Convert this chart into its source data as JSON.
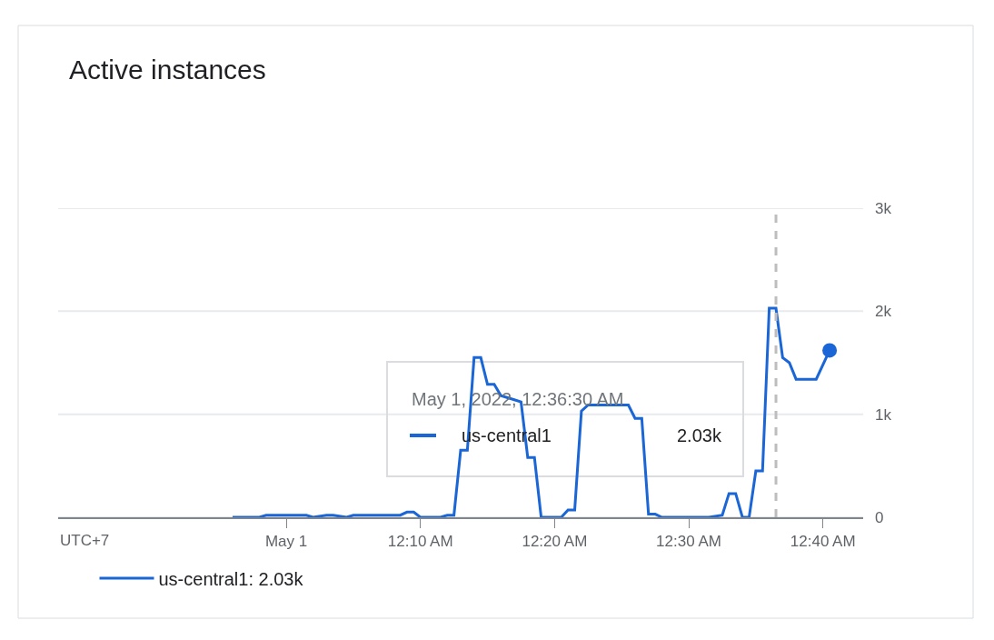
{
  "chart_data": {
    "type": "line",
    "title": "Active instances",
    "x": [
      "2022-04-30T23:56:00",
      "2022-04-30T23:58:00",
      "2022-04-30T23:58:30",
      "2022-05-01T00:01:30",
      "2022-05-01T00:02:00",
      "2022-05-01T00:03:00",
      "2022-05-01T00:03:30",
      "2022-05-01T00:04:30",
      "2022-05-01T00:05:00",
      "2022-05-01T00:08:30",
      "2022-05-01T00:09:00",
      "2022-05-01T00:09:30",
      "2022-05-01T00:10:00",
      "2022-05-01T00:11:30",
      "2022-05-01T00:12:00",
      "2022-05-01T00:12:30",
      "2022-05-01T00:13:00",
      "2022-05-01T00:13:30",
      "2022-05-01T00:14:00",
      "2022-05-01T00:14:30",
      "2022-05-01T00:15:00",
      "2022-05-01T00:15:30",
      "2022-05-01T00:16:00",
      "2022-05-01T00:17:00",
      "2022-05-01T00:17:30",
      "2022-05-01T00:18:00",
      "2022-05-01T00:18:30",
      "2022-05-01T00:19:00",
      "2022-05-01T00:20:30",
      "2022-05-01T00:21:00",
      "2022-05-01T00:21:30",
      "2022-05-01T00:22:00",
      "2022-05-01T00:22:30",
      "2022-05-01T00:25:30",
      "2022-05-01T00:26:00",
      "2022-05-01T00:26:30",
      "2022-05-01T00:27:00",
      "2022-05-01T00:27:30",
      "2022-05-01T00:28:00",
      "2022-05-01T00:31:30",
      "2022-05-01T00:32:30",
      "2022-05-01T00:33:00",
      "2022-05-01T00:33:30",
      "2022-05-01T00:34:00",
      "2022-05-01T00:34:30",
      "2022-05-01T00:35:00",
      "2022-05-01T00:35:30",
      "2022-05-01T00:36:00",
      "2022-05-01T00:36:30",
      "2022-05-01T00:37:00",
      "2022-05-01T00:37:30",
      "2022-05-01T00:38:00",
      "2022-05-01T00:39:30",
      "2022-05-01T00:40:30"
    ],
    "series": [
      {
        "name": "us-central1: 2.03k",
        "color": "#1a66d6",
        "values": [
          0,
          0,
          20,
          20,
          0,
          20,
          20,
          0,
          20,
          20,
          50,
          50,
          0,
          0,
          20,
          20,
          650,
          650,
          1550,
          1550,
          1290,
          1290,
          1180,
          1140,
          1120,
          580,
          580,
          0,
          0,
          70,
          70,
          1030,
          1090,
          1090,
          960,
          960,
          30,
          30,
          0,
          0,
          20,
          230,
          230,
          0,
          0,
          450,
          450,
          2030,
          2030,
          1550,
          1500,
          1340,
          1340,
          1620
        ]
      }
    ],
    "xlim": [
      "2022-04-30T23:43:00",
      "2022-05-01T00:43:00"
    ],
    "xticks": [
      {
        "value": "2022-05-01T00:00:00",
        "label": "May 1"
      },
      {
        "value": "2022-05-01T00:10:00",
        "label": "12:10 AM"
      },
      {
        "value": "2022-05-01T00:20:00",
        "label": "12:20 AM"
      },
      {
        "value": "2022-05-01T00:30:00",
        "label": "12:30 AM"
      },
      {
        "value": "2022-05-01T00:40:00",
        "label": "12:40 AM"
      }
    ],
    "ylim": [
      0,
      3000
    ],
    "yticks": [
      0,
      {
        "value": 1000,
        "label": "1k"
      },
      {
        "value": 2000,
        "label": "2k"
      },
      {
        "value": 3000,
        "label": "3k"
      }
    ],
    "grid": "y",
    "legend": "bottom",
    "marker": "none",
    "line_style": "solid",
    "ref_lines": [
      {
        "axis": "x",
        "value": "2022-05-01T00:36:30",
        "color": "#bdbdbd",
        "line_style": "dashed"
      }
    ],
    "annotations": [
      "UTC+7",
      "May 1, 2022, 12:36:30 AM",
      "us-central1",
      "2.03k"
    ]
  }
}
